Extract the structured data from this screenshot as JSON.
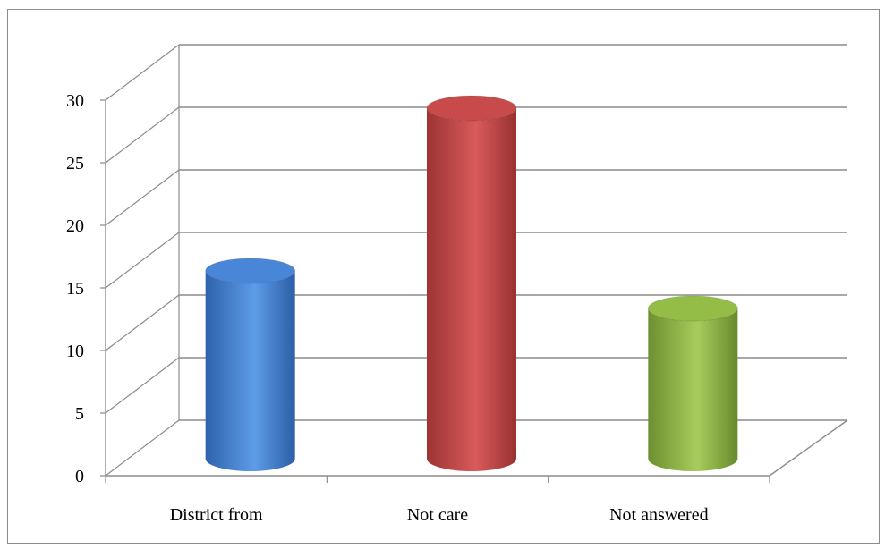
{
  "chart_data": {
    "type": "bar",
    "style": "3d-cylinder",
    "categories": [
      "District from",
      "Not care",
      "Not answered"
    ],
    "values": [
      15,
      28,
      12
    ],
    "colors": [
      "#4a86d8",
      "#c94a4a",
      "#94bd48"
    ],
    "ylim": [
      0,
      30
    ],
    "yticks": [
      0,
      5,
      10,
      15,
      20,
      25,
      30
    ],
    "grid": true,
    "legend": "none"
  }
}
